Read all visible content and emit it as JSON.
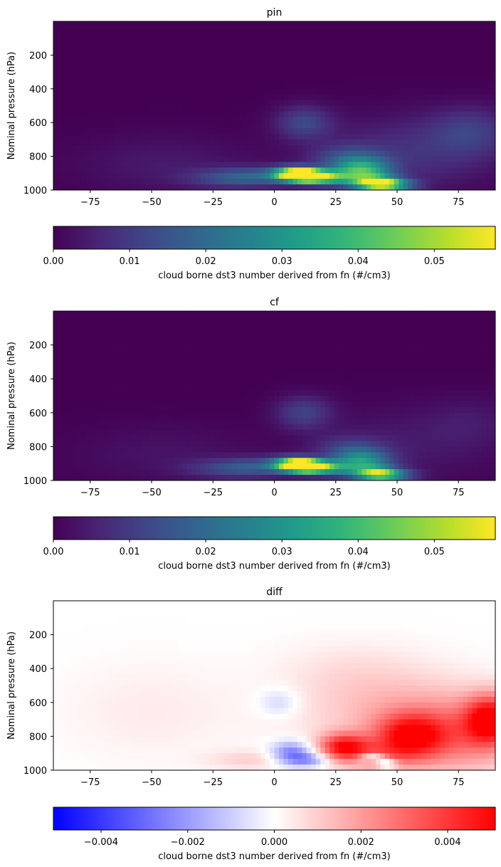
{
  "chart_data": [
    {
      "type": "heatmap",
      "title": "pin",
      "ylabel": "Nominal pressure (hPa)",
      "xlim": [
        -90,
        90
      ],
      "ylim": [
        1000,
        0
      ],
      "x_ticks": [
        -75,
        -50,
        -25,
        0,
        25,
        50,
        75
      ],
      "y_ticks": [
        200,
        400,
        600,
        800,
        1000
      ],
      "colormap": "viridis",
      "colorbar": {
        "label": "cloud borne dst3 number derived from fn (#/cm3)",
        "range": [
          0,
          0.058
        ],
        "ticks": [
          "0.00",
          "0.01",
          "0.02",
          "0.03",
          "0.04",
          "0.05"
        ],
        "tick_values": [
          0,
          0.01,
          0.02,
          0.03,
          0.04,
          0.05
        ]
      },
      "features": [
        {
          "lat": 13,
          "p": 915,
          "value": 0.057,
          "dlat": 5,
          "dp": 22
        },
        {
          "lat": 8,
          "p": 905,
          "value": 0.05,
          "dlat": 6,
          "dp": 28
        },
        {
          "lat": 20,
          "p": 925,
          "value": 0.034,
          "dlat": 7,
          "dp": 30
        },
        {
          "lat": 36,
          "p": 900,
          "value": 0.034,
          "dlat": 8,
          "dp": 55
        },
        {
          "lat": 42,
          "p": 960,
          "value": 0.04,
          "dlat": 6,
          "dp": 25
        },
        {
          "lat": 48,
          "p": 970,
          "value": 0.025,
          "dlat": 7,
          "dp": 25
        },
        {
          "lat": 30,
          "p": 820,
          "value": 0.012,
          "dlat": 10,
          "dp": 60
        },
        {
          "lat": -5,
          "p": 920,
          "value": 0.013,
          "dlat": 12,
          "dp": 40
        },
        {
          "lat": -20,
          "p": 930,
          "value": 0.009,
          "dlat": 12,
          "dp": 40
        },
        {
          "lat": 12,
          "p": 600,
          "value": 0.012,
          "dlat": 8,
          "dp": 70
        },
        {
          "lat": 55,
          "p": 780,
          "value": 0.008,
          "dlat": 25,
          "dp": 150
        },
        {
          "lat": 80,
          "p": 650,
          "value": 0.009,
          "dlat": 12,
          "dp": 100
        },
        {
          "lat": -45,
          "p": 850,
          "value": 0.004,
          "dlat": 25,
          "dp": 120
        }
      ]
    },
    {
      "type": "heatmap",
      "title": "cf",
      "ylabel": "Nominal pressure (hPa)",
      "xlim": [
        -90,
        90
      ],
      "ylim": [
        1000,
        0
      ],
      "x_ticks": [
        -75,
        -50,
        -25,
        0,
        25,
        50,
        75
      ],
      "y_ticks": [
        200,
        400,
        600,
        800,
        1000
      ],
      "colormap": "viridis",
      "colorbar": {
        "label": "cloud borne dst3 number derived from fn (#/cm3)",
        "range": [
          0,
          0.058
        ],
        "ticks": [
          "0.00",
          "0.01",
          "0.02",
          "0.03",
          "0.04",
          "0.05"
        ],
        "tick_values": [
          0,
          0.01,
          0.02,
          0.03,
          0.04,
          0.05
        ]
      },
      "features": [
        {
          "lat": 13,
          "p": 915,
          "value": 0.056,
          "dlat": 5,
          "dp": 22
        },
        {
          "lat": 8,
          "p": 905,
          "value": 0.048,
          "dlat": 6,
          "dp": 28
        },
        {
          "lat": 20,
          "p": 925,
          "value": 0.03,
          "dlat": 7,
          "dp": 30
        },
        {
          "lat": 36,
          "p": 900,
          "value": 0.028,
          "dlat": 8,
          "dp": 55
        },
        {
          "lat": 42,
          "p": 960,
          "value": 0.034,
          "dlat": 6,
          "dp": 25
        },
        {
          "lat": 48,
          "p": 970,
          "value": 0.018,
          "dlat": 7,
          "dp": 25
        },
        {
          "lat": 30,
          "p": 820,
          "value": 0.009,
          "dlat": 10,
          "dp": 60
        },
        {
          "lat": -5,
          "p": 920,
          "value": 0.012,
          "dlat": 12,
          "dp": 40
        },
        {
          "lat": -20,
          "p": 930,
          "value": 0.008,
          "dlat": 12,
          "dp": 40
        },
        {
          "lat": 12,
          "p": 600,
          "value": 0.011,
          "dlat": 8,
          "dp": 70
        },
        {
          "lat": 55,
          "p": 780,
          "value": 0.004,
          "dlat": 25,
          "dp": 150
        },
        {
          "lat": 80,
          "p": 650,
          "value": 0.003,
          "dlat": 12,
          "dp": 100
        },
        {
          "lat": -45,
          "p": 850,
          "value": 0.003,
          "dlat": 25,
          "dp": 120
        }
      ]
    },
    {
      "type": "heatmap",
      "title": "diff",
      "ylabel": "Nominal pressure (hPa)",
      "xlim": [
        -90,
        90
      ],
      "ylim": [
        1000,
        0
      ],
      "x_ticks": [
        -75,
        -50,
        -25,
        0,
        25,
        50,
        75
      ],
      "y_ticks": [
        200,
        400,
        600,
        800,
        1000
      ],
      "colormap": "bwr",
      "colorbar": {
        "label": "cloud borne dst3 number derived from fn (#/cm3)",
        "range": [
          -0.0051,
          0.0051
        ],
        "ticks": [
          "−0.004",
          "−0.002",
          "0.000",
          "0.002",
          "0.004"
        ],
        "tick_values": [
          -0.004,
          -0.002,
          0,
          0.002,
          0.004
        ]
      },
      "features": [
        {
          "lat": 28,
          "p": 860,
          "value": 0.004,
          "dlat": 7,
          "dp": 55
        },
        {
          "lat": 55,
          "p": 800,
          "value": 0.0037,
          "dlat": 10,
          "dp": 90
        },
        {
          "lat": 88,
          "p": 700,
          "value": 0.0045,
          "dlat": 7,
          "dp": 100
        },
        {
          "lat": 75,
          "p": 800,
          "value": 0.0024,
          "dlat": 18,
          "dp": 160
        },
        {
          "lat": 45,
          "p": 650,
          "value": 0.0013,
          "dlat": 25,
          "dp": 180
        },
        {
          "lat": 40,
          "p": 920,
          "value": 0.0018,
          "dlat": 12,
          "dp": 60
        },
        {
          "lat": 40,
          "p": 962,
          "value": 0.0045,
          "dlat": 3,
          "dp": 10
        },
        {
          "lat": 40,
          "p": 935,
          "value": -0.004,
          "dlat": 4,
          "dp": 22
        },
        {
          "lat": 46,
          "p": 965,
          "value": -0.0035,
          "dlat": 3,
          "dp": 14
        },
        {
          "lat": 7,
          "p": 900,
          "value": -0.0028,
          "dlat": 6,
          "dp": 50
        },
        {
          "lat": 15,
          "p": 940,
          "value": -0.002,
          "dlat": 6,
          "dp": 30
        },
        {
          "lat": 2,
          "p": 600,
          "value": -0.001,
          "dlat": 6,
          "dp": 60
        },
        {
          "lat": -10,
          "p": 940,
          "value": 0.0009,
          "dlat": 12,
          "dp": 40
        },
        {
          "lat": -50,
          "p": 650,
          "value": 0.0004,
          "dlat": 25,
          "dp": 200
        },
        {
          "lat": 30,
          "p": 400,
          "value": 0.0004,
          "dlat": 20,
          "dp": 120
        }
      ]
    }
  ]
}
